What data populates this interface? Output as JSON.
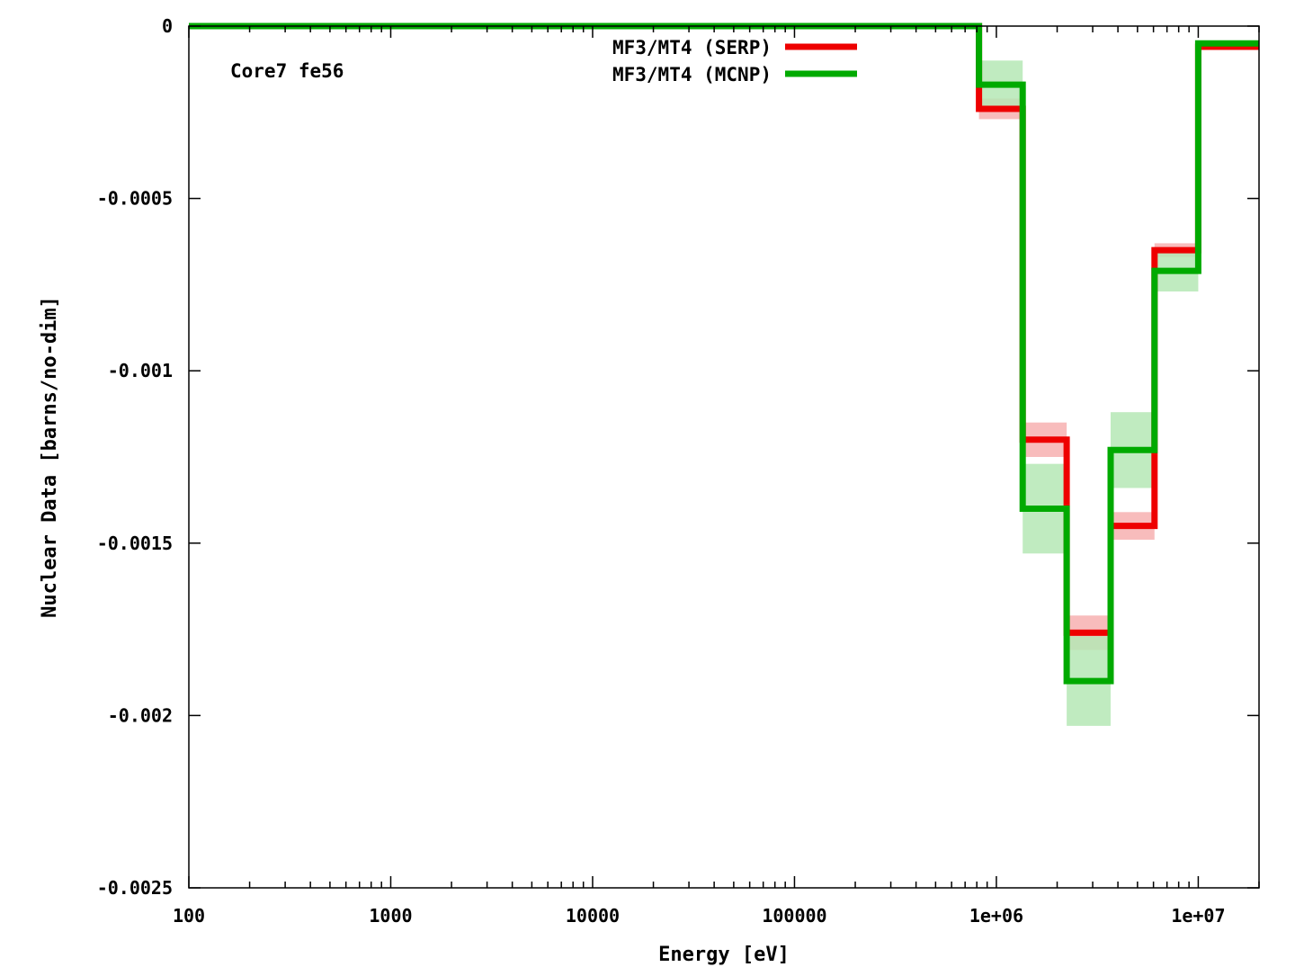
{
  "chart_data": {
    "type": "line",
    "subtype": "step",
    "xlabel": "Energy [eV]",
    "ylabel": "Nuclear Data [barns/no-dim]",
    "annotation": "Core7 fe56",
    "xscale": "log",
    "xlim": [
      100,
      20000000
    ],
    "ylim": [
      -0.0025,
      0
    ],
    "xticks": [
      {
        "value": 100,
        "label": "100"
      },
      {
        "value": 1000,
        "label": "1000"
      },
      {
        "value": 10000,
        "label": "10000"
      },
      {
        "value": 100000,
        "label": "100000"
      },
      {
        "value": 1000000,
        "label": "1e+06"
      },
      {
        "value": 10000000,
        "label": "1e+07"
      }
    ],
    "yticks": [
      {
        "value": 0,
        "label": "0"
      },
      {
        "value": -0.0005,
        "label": "-0.0005"
      },
      {
        "value": -0.001,
        "label": "-0.001"
      },
      {
        "value": -0.0015,
        "label": "-0.0015"
      },
      {
        "value": -0.002,
        "label": "-0.002"
      },
      {
        "value": -0.0025,
        "label": "-0.0025"
      }
    ],
    "grid": false,
    "legend_position": "top-center",
    "series": [
      {
        "name": "MF3/MT4 (SERP)",
        "color": "#ee0000",
        "band_color": "#f7b0b0",
        "bins": [
          {
            "e_low": 100,
            "e_high": 820000,
            "value": 0,
            "err": 0
          },
          {
            "e_low": 820000,
            "e_high": 1350000,
            "value": -0.00024,
            "err": 3e-05
          },
          {
            "e_low": 1350000,
            "e_high": 2230000,
            "value": -0.0012,
            "err": 5e-05
          },
          {
            "e_low": 2230000,
            "e_high": 3680000,
            "value": -0.00176,
            "err": 5e-05
          },
          {
            "e_low": 3680000,
            "e_high": 6070000,
            "value": -0.00145,
            "err": 4e-05
          },
          {
            "e_low": 6070000,
            "e_high": 10000000,
            "value": -0.00065,
            "err": 2e-05
          },
          {
            "e_low": 10000000,
            "e_high": 20000000,
            "value": -6e-05,
            "err": 5e-06
          }
        ]
      },
      {
        "name": "MF3/MT4 (MCNP)",
        "color": "#00aa00",
        "band_color": "#b5e8b5",
        "bins": [
          {
            "e_low": 100,
            "e_high": 820000,
            "value": 0,
            "err": 0
          },
          {
            "e_low": 820000,
            "e_high": 1350000,
            "value": -0.00017,
            "err": 7e-05
          },
          {
            "e_low": 1350000,
            "e_high": 2230000,
            "value": -0.0014,
            "err": 0.00013
          },
          {
            "e_low": 2230000,
            "e_high": 3680000,
            "value": -0.0019,
            "err": 0.00013
          },
          {
            "e_low": 3680000,
            "e_high": 6070000,
            "value": -0.00123,
            "err": 0.00011
          },
          {
            "e_low": 6070000,
            "e_high": 10000000,
            "value": -0.00071,
            "err": 6e-05
          },
          {
            "e_low": 10000000,
            "e_high": 20000000,
            "value": -5e-05,
            "err": 5e-06
          }
        ]
      }
    ]
  }
}
